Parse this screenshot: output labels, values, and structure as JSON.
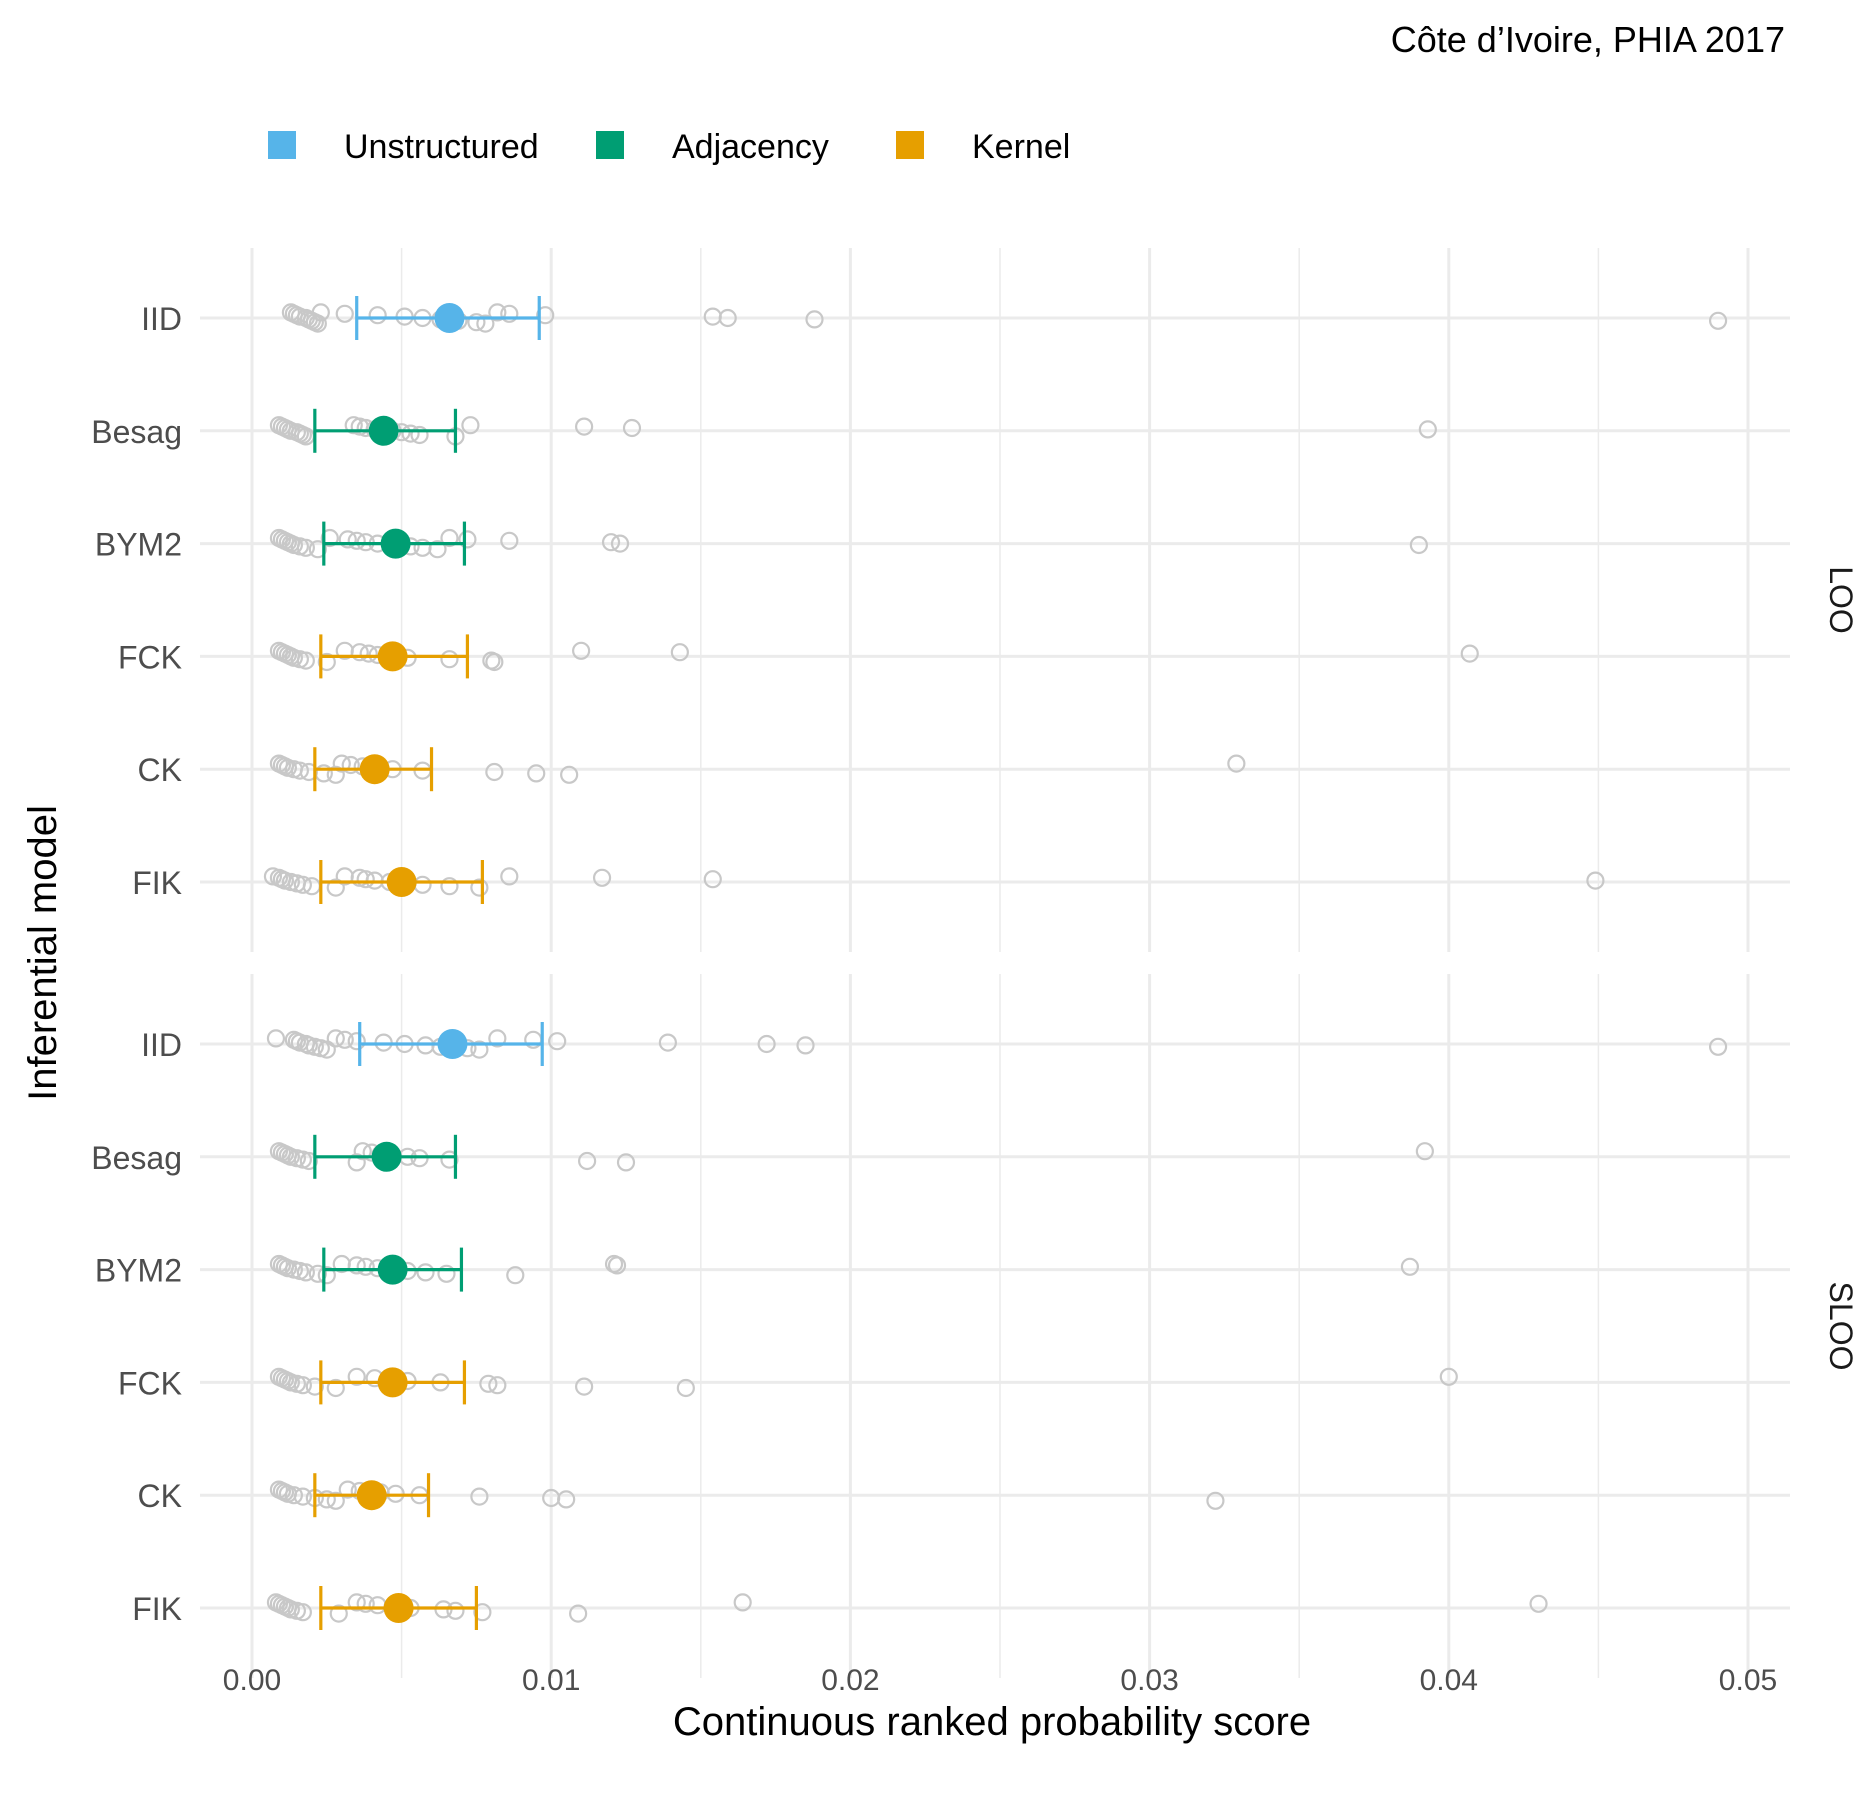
{
  "chart_data": {
    "type": "scatter",
    "title": "Côte d’Ivoire, PHIA 2017",
    "xlabel": "Continuous ranked probability score",
    "ylabel": "Inferential model",
    "xlim": [
      -0.0017,
      0.0515
    ],
    "x_ticks": [
      "0.00",
      "0.01",
      "0.02",
      "0.03",
      "0.04",
      "0.05"
    ],
    "legend_position": "top-left",
    "legend": [
      {
        "name": "Unstructured",
        "color": "#56B4E9"
      },
      {
        "name": "Adjacency",
        "color": "#009E73"
      },
      {
        "name": "Kernel",
        "color": "#E69F00"
      }
    ],
    "point_color": "#c8c8c8",
    "panels": [
      {
        "strip": "LOO",
        "rows": [
          {
            "model": "IID",
            "group": "Unstructured",
            "mean": 0.0066,
            "lower": 0.0035,
            "upper": 0.0096,
            "points": [
              0.0013,
              0.0014,
              0.0015,
              0.0016,
              0.0018,
              0.0019,
              0.002,
              0.0021,
              0.0022,
              0.0023,
              0.0031,
              0.0042,
              0.0051,
              0.0057,
              0.0063,
              0.0069,
              0.0075,
              0.0078,
              0.0082,
              0.0086,
              0.0098,
              0.0154,
              0.0159,
              0.0188,
              0.049
            ]
          },
          {
            "model": "Besag",
            "group": "Adjacency",
            "mean": 0.0044,
            "lower": 0.0021,
            "upper": 0.0068,
            "points": [
              0.0009,
              0.001,
              0.0011,
              0.0012,
              0.0013,
              0.0015,
              0.0016,
              0.0017,
              0.0018,
              0.0034,
              0.0036,
              0.0038,
              0.0041,
              0.0047,
              0.005,
              0.0053,
              0.0056,
              0.0068,
              0.0073,
              0.0111,
              0.0127,
              0.0393
            ]
          },
          {
            "model": "BYM2",
            "group": "Adjacency",
            "mean": 0.0048,
            "lower": 0.0024,
            "upper": 0.0071,
            "points": [
              0.0009,
              0.001,
              0.0011,
              0.0012,
              0.0013,
              0.0014,
              0.0016,
              0.0018,
              0.0022,
              0.0026,
              0.0032,
              0.0035,
              0.0038,
              0.0042,
              0.0047,
              0.0053,
              0.0057,
              0.0062,
              0.0066,
              0.0072,
              0.0086,
              0.012,
              0.0123,
              0.039
            ]
          },
          {
            "model": "FCK",
            "group": "Kernel",
            "mean": 0.0047,
            "lower": 0.0023,
            "upper": 0.0072,
            "points": [
              0.0009,
              0.001,
              0.0011,
              0.0012,
              0.0013,
              0.0014,
              0.0016,
              0.0018,
              0.0025,
              0.0031,
              0.0036,
              0.0039,
              0.0042,
              0.0045,
              0.0052,
              0.0066,
              0.008,
              0.0081,
              0.011,
              0.0143,
              0.0407
            ]
          },
          {
            "model": "CK",
            "group": "Kernel",
            "mean": 0.0041,
            "lower": 0.0021,
            "upper": 0.006,
            "points": [
              0.0009,
              0.001,
              0.0011,
              0.0012,
              0.0014,
              0.0016,
              0.0019,
              0.0024,
              0.0028,
              0.003,
              0.0033,
              0.0037,
              0.0042,
              0.0047,
              0.0057,
              0.0081,
              0.0095,
              0.0106,
              0.0329
            ]
          },
          {
            "model": "FIK",
            "group": "Kernel",
            "mean": 0.005,
            "lower": 0.0023,
            "upper": 0.0077,
            "points": [
              0.0007,
              0.0009,
              0.001,
              0.0011,
              0.0013,
              0.0015,
              0.0017,
              0.002,
              0.0028,
              0.0031,
              0.0036,
              0.0038,
              0.0041,
              0.0046,
              0.0052,
              0.0057,
              0.0066,
              0.0076,
              0.0086,
              0.0117,
              0.0154,
              0.0449
            ]
          }
        ]
      },
      {
        "strip": "SLOO",
        "rows": [
          {
            "model": "IID",
            "group": "Unstructured",
            "mean": 0.0067,
            "lower": 0.0036,
            "upper": 0.0097,
            "points": [
              0.0008,
              0.0014,
              0.0015,
              0.0016,
              0.0018,
              0.0019,
              0.0021,
              0.0023,
              0.0025,
              0.0028,
              0.0031,
              0.0035,
              0.0044,
              0.0051,
              0.0058,
              0.0063,
              0.0072,
              0.0076,
              0.0082,
              0.0094,
              0.0102,
              0.0139,
              0.0172,
              0.0185,
              0.049
            ]
          },
          {
            "model": "Besag",
            "group": "Adjacency",
            "mean": 0.0045,
            "lower": 0.0021,
            "upper": 0.0068,
            "points": [
              0.0009,
              0.001,
              0.0011,
              0.0012,
              0.0013,
              0.0015,
              0.0017,
              0.0019,
              0.0035,
              0.0037,
              0.004,
              0.0043,
              0.0047,
              0.0052,
              0.0056,
              0.0066,
              0.0112,
              0.0125,
              0.0392
            ]
          },
          {
            "model": "BYM2",
            "group": "Adjacency",
            "mean": 0.0047,
            "lower": 0.0024,
            "upper": 0.007,
            "points": [
              0.0009,
              0.001,
              0.0011,
              0.0012,
              0.0014,
              0.0016,
              0.0018,
              0.0022,
              0.0025,
              0.003,
              0.0035,
              0.0038,
              0.0042,
              0.0046,
              0.0052,
              0.0058,
              0.0065,
              0.0088,
              0.0121,
              0.0122,
              0.0387
            ]
          },
          {
            "model": "FCK",
            "group": "Kernel",
            "mean": 0.0047,
            "lower": 0.0023,
            "upper": 0.0071,
            "points": [
              0.0009,
              0.001,
              0.0011,
              0.0012,
              0.0013,
              0.0015,
              0.0017,
              0.0021,
              0.0028,
              0.0035,
              0.0041,
              0.0046,
              0.0052,
              0.0063,
              0.0079,
              0.0082,
              0.0111,
              0.0145,
              0.04
            ]
          },
          {
            "model": "CK",
            "group": "Kernel",
            "mean": 0.004,
            "lower": 0.0021,
            "upper": 0.0059,
            "points": [
              0.0009,
              0.001,
              0.0011,
              0.0012,
              0.0014,
              0.0017,
              0.0021,
              0.0025,
              0.0028,
              0.0032,
              0.0036,
              0.0043,
              0.0048,
              0.0056,
              0.0076,
              0.01,
              0.0105,
              0.0322
            ]
          },
          {
            "model": "FIK",
            "group": "Kernel",
            "mean": 0.0049,
            "lower": 0.0023,
            "upper": 0.0075,
            "points": [
              0.0008,
              0.0009,
              0.001,
              0.0011,
              0.0012,
              0.0013,
              0.0015,
              0.0017,
              0.0029,
              0.0035,
              0.0038,
              0.0042,
              0.0047,
              0.0053,
              0.0064,
              0.0068,
              0.0077,
              0.0109,
              0.0164,
              0.043
            ]
          }
        ]
      }
    ]
  }
}
